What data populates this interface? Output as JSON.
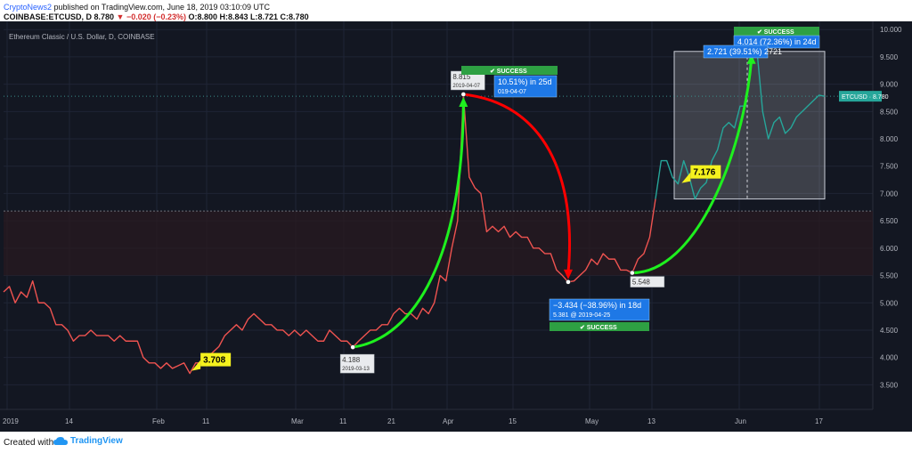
{
  "header": {
    "publisher": "CryptoNews2",
    "published_text": " published on TradingView.com, June 18, 2019 03:10:09 UTC",
    "symbol_line_pre": "COINBASE:ETCUSD, D 8.780 ",
    "symbol_line_change": "▼ −0.020 (−0.23%)",
    "symbol_line_post": " O:8.800 H:8.843 L:8.721 C:8.780"
  },
  "footer": {
    "created_with": "Created with",
    "brand": "TradingView"
  },
  "chart_data": {
    "type": "line",
    "title": "Ethereum Classic / U.S. Dollar, D, COINBASE",
    "ylim": [
      3.05,
      10.15
    ],
    "y_ticks": [
      "3.500",
      "4.000",
      "4.500",
      "5.000",
      "5.500",
      "6.000",
      "6.500",
      "7.000",
      "7.500",
      "8.000",
      "8.500",
      "9.000",
      "9.500",
      "10.000"
    ],
    "x_ticks": [
      "2019",
      "14",
      "Feb",
      "11",
      "Mar",
      "11",
      "21",
      "Apr",
      "15",
      "May",
      "13",
      "Jun",
      "17"
    ],
    "price_label": "ETCUSD · 8.780",
    "last_price": 8.78,
    "reference_level": 6.68,
    "series": [
      {
        "segment": "red",
        "values": [
          5.2,
          5.3,
          5.0,
          5.2,
          5.1,
          5.4,
          5.0,
          5.0,
          4.9,
          4.6,
          4.6,
          4.5,
          4.3,
          4.4,
          4.4,
          4.5,
          4.4,
          4.4,
          4.4,
          4.3,
          4.4,
          4.3,
          4.3,
          4.3,
          4.0,
          3.9,
          3.9,
          3.8,
          3.9,
          3.8,
          3.85,
          3.9,
          3.708,
          3.9,
          3.9,
          4.0,
          4.1,
          4.2,
          4.4,
          4.5,
          4.6,
          4.5,
          4.7,
          4.8,
          4.7,
          4.6,
          4.6,
          4.5,
          4.5,
          4.4,
          4.5,
          4.4,
          4.5,
          4.4,
          4.3,
          4.3,
          4.5,
          4.4,
          4.3,
          4.3,
          4.188,
          4.3,
          4.4,
          4.5,
          4.5,
          4.6,
          4.6,
          4.8,
          4.9,
          4.8,
          4.8,
          4.7,
          4.9,
          4.8,
          5.0,
          5.5,
          5.4,
          6.0,
          6.5,
          8.815,
          7.3,
          7.1,
          7.0,
          6.3,
          6.4,
          6.3,
          6.4,
          6.2,
          6.3,
          6.2,
          6.2,
          6.0,
          6.0,
          5.9,
          5.9,
          5.6,
          5.5,
          5.381,
          5.4,
          5.5,
          5.6,
          5.8,
          5.7,
          5.9,
          5.8,
          5.8,
          5.6,
          5.6,
          5.548,
          5.8,
          5.9,
          6.2,
          6.9
        ]
      },
      {
        "segment": "teal",
        "values": [
          7.6,
          7.6,
          7.3,
          7.176,
          7.6,
          7.3,
          6.9,
          7.1,
          7.2,
          7.6,
          7.8,
          8.2,
          8.3,
          8.2,
          8.6,
          8.6,
          9.6,
          9.6,
          8.5,
          8.0,
          8.3,
          8.4,
          8.1,
          8.2,
          8.4,
          8.5,
          8.6,
          8.7,
          8.8,
          8.78
        ]
      }
    ],
    "annotations": [
      {
        "kind": "badge",
        "text": "3.708",
        "value": 3.708
      },
      {
        "kind": "badge",
        "text": "7.176",
        "value": 7.176
      },
      {
        "kind": "point",
        "price": "4.188",
        "date": "2019-03-13"
      },
      {
        "kind": "point",
        "price": "8.815",
        "date": "2019-04-07"
      },
      {
        "kind": "point",
        "price": "5.548"
      },
      {
        "kind": "arrow",
        "color": "#1ef01e",
        "from": "4.188",
        "to": "8.815"
      },
      {
        "kind": "arrow",
        "color": "#ff0000",
        "from": "8.815",
        "to": "5.381"
      },
      {
        "kind": "arrow",
        "color": "#1ef01e",
        "from": "5.548",
        "to": "9.6"
      },
      {
        "kind": "success",
        "text": "SUCCESS"
      },
      {
        "kind": "success",
        "text": "SUCCESS"
      },
      {
        "kind": "success",
        "text": "SUCCESS"
      },
      {
        "kind": "info",
        "text": "10.51%) in 25d",
        "subtext": "019-04-07"
      },
      {
        "kind": "info",
        "text": "−3.434 (−38.96%) in 18d",
        "subtext": "5.381 @ 2019-04-25"
      },
      {
        "kind": "info",
        "text": "4.014 (72.36%) in 24d"
      },
      {
        "kind": "info",
        "text": "2.721 (39.51%) 2721"
      },
      {
        "kind": "box",
        "from": 6.9,
        "to": 9.6
      }
    ]
  }
}
